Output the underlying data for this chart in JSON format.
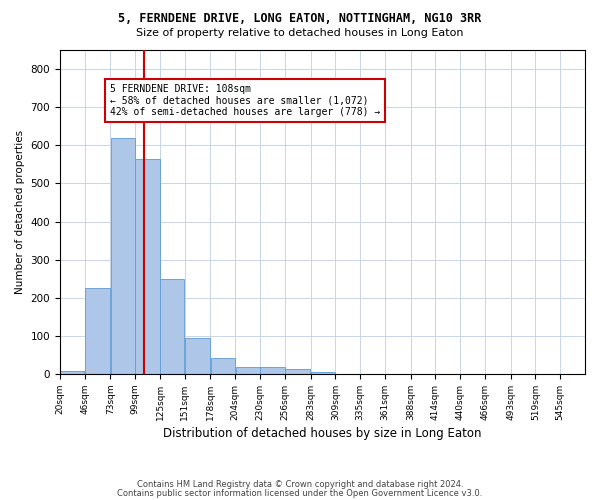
{
  "title1": "5, FERNDENE DRIVE, LONG EATON, NOTTINGHAM, NG10 3RR",
  "title2": "Size of property relative to detached houses in Long Eaton",
  "xlabel": "Distribution of detached houses by size in Long Eaton",
  "ylabel": "Number of detached properties",
  "bar_color": "#aec6e8",
  "bar_edge_color": "#5b9bd5",
  "bin_edges_labels": [
    "20sqm",
    "46sqm",
    "73sqm",
    "99sqm",
    "125sqm",
    "151sqm",
    "178sqm",
    "204sqm",
    "230sqm",
    "256sqm",
    "283sqm",
    "309sqm",
    "335sqm",
    "361sqm",
    "388sqm",
    "414sqm",
    "440sqm",
    "466sqm",
    "493sqm",
    "519sqm",
    "545sqm"
  ],
  "bar_heights": [
    8,
    225,
    620,
    565,
    250,
    95,
    42,
    18,
    18,
    12,
    5,
    0,
    0,
    0,
    0,
    0,
    0,
    0,
    0,
    0
  ],
  "ylim": [
    0,
    850
  ],
  "yticks": [
    0,
    100,
    200,
    300,
    400,
    500,
    600,
    700,
    800
  ],
  "bin_edges": [
    20,
    46,
    73,
    99,
    125,
    151,
    178,
    204,
    230,
    256,
    283,
    309,
    335,
    361,
    388,
    414,
    440,
    466,
    493,
    519,
    545
  ],
  "property_line_x": 108,
  "property_line_color": "#cc0000",
  "annotation_text": "5 FERNDENE DRIVE: 108sqm\n← 58% of detached houses are smaller (1,072)\n42% of semi-detached houses are larger (778) →",
  "footer_line1": "Contains HM Land Registry data © Crown copyright and database right 2024.",
  "footer_line2": "Contains public sector information licensed under the Open Government Licence v3.0.",
  "background_color": "#ffffff",
  "grid_color": "#c8d4e8"
}
